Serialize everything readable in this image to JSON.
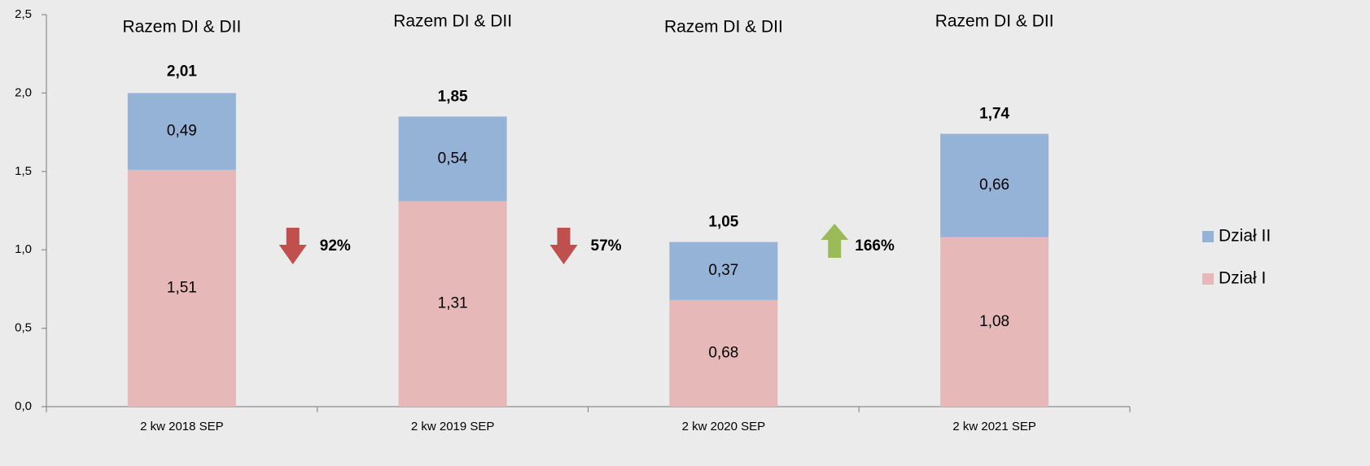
{
  "chart_data": {
    "type": "stacked_bar",
    "categories": [
      "2 kw 2018 SEP",
      "2 kw 2019 SEP",
      "2 kw 2020 SEP",
      "2 kw 2021 SEP"
    ],
    "series": [
      {
        "name": "Dział I",
        "color": "#e6b8b7",
        "values": [
          1.51,
          1.31,
          0.68,
          1.08
        ],
        "value_labels": [
          "1,51",
          "1,31",
          "0,68",
          "1,08"
        ]
      },
      {
        "name": "Dział II",
        "color": "#95b3d7",
        "values": [
          0.49,
          0.54,
          0.37,
          0.66
        ],
        "value_labels": [
          "0,49",
          "0,54",
          "0,37",
          "0,66"
        ]
      }
    ],
    "totals": {
      "values": [
        2.01,
        1.85,
        1.05,
        1.74
      ],
      "value_labels": [
        "2,01",
        "1,85",
        "1,05",
        "1,74"
      ]
    },
    "group_labels": [
      "Razem DI & DII",
      "Razem DI & DII",
      "Razem DI & DII",
      "Razem DI & DII"
    ],
    "changes": [
      {
        "label": "92%",
        "direction": "down",
        "color": "#c0504d"
      },
      {
        "label": "57%",
        "direction": "down",
        "color": "#c0504d"
      },
      {
        "label": "166%",
        "direction": "up",
        "color": "#9bbb59"
      }
    ],
    "ylim": [
      0,
      2.5
    ],
    "yticks": [
      {
        "value": 0,
        "label": "0,0"
      },
      {
        "value": 0.5,
        "label": "0,5"
      },
      {
        "value": 1,
        "label": "1,0"
      },
      {
        "value": 1.5,
        "label": "1,5"
      },
      {
        "value": 2,
        "label": "2,0"
      },
      {
        "value": 2.5,
        "label": "2,5"
      }
    ],
    "legend": "right"
  }
}
